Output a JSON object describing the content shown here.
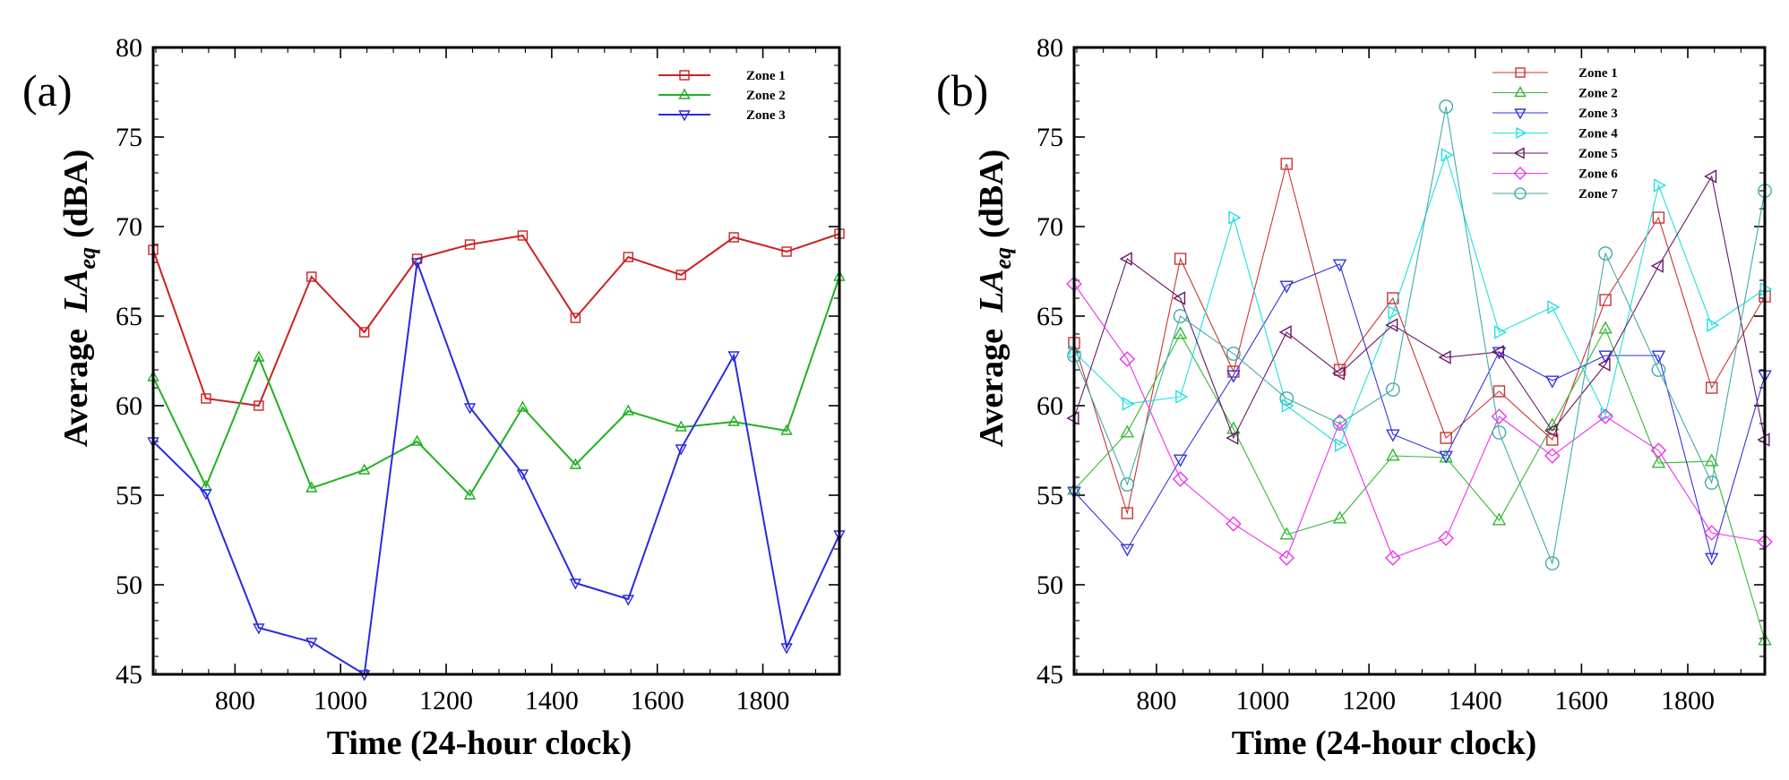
{
  "chart_data": [
    {
      "type": "line",
      "panel_label": "(a)",
      "xlabel": "Time (24-hour clock)",
      "ylabel": {
        "prefix": "Average",
        "main": "LA",
        "sub": "eq",
        "suffix": "(dBA)"
      },
      "xlim": [
        645,
        1945
      ],
      "ylim": [
        45,
        80
      ],
      "xticks": [
        800,
        1000,
        1200,
        1400,
        1600,
        1800
      ],
      "yticks": [
        45,
        50,
        55,
        60,
        65,
        70,
        75,
        80
      ],
      "x": [
        645,
        745,
        845,
        945,
        1045,
        1145,
        1245,
        1345,
        1445,
        1545,
        1645,
        1745,
        1845,
        1945
      ],
      "legend_position": "top-right",
      "series": [
        {
          "name": "Zone 1",
          "color": "#cc2222",
          "marker": "square",
          "values": [
            68.7,
            60.4,
            60.0,
            67.2,
            64.1,
            68.2,
            69.0,
            69.5,
            64.9,
            68.3,
            67.3,
            69.4,
            68.6,
            69.6
          ]
        },
        {
          "name": "Zone 2",
          "color": "#22b022",
          "marker": "triangle-up",
          "values": [
            61.6,
            55.5,
            62.7,
            55.4,
            56.4,
            58.0,
            55.0,
            59.9,
            56.7,
            59.7,
            58.8,
            59.1,
            58.6,
            67.2
          ]
        },
        {
          "name": "Zone 3",
          "color": "#2a2ae0",
          "marker": "triangle-down",
          "values": [
            58.0,
            55.1,
            47.6,
            46.8,
            45.0,
            68.0,
            59.9,
            56.2,
            50.1,
            49.2,
            57.6,
            62.8,
            46.5,
            52.8
          ]
        }
      ]
    },
    {
      "type": "line",
      "panel_label": "(b)",
      "xlabel": "Time (24-hour clock)",
      "ylabel": {
        "prefix": "Average",
        "main": "LA",
        "sub": "eq",
        "suffix": "(dBA)"
      },
      "xlim": [
        645,
        1945
      ],
      "ylim": [
        45,
        80
      ],
      "xticks": [
        800,
        1000,
        1200,
        1400,
        1600,
        1800
      ],
      "yticks": [
        45,
        50,
        55,
        60,
        65,
        70,
        75,
        80
      ],
      "x": [
        645,
        745,
        845,
        945,
        1045,
        1145,
        1245,
        1345,
        1445,
        1545,
        1645,
        1745,
        1845,
        1945
      ],
      "legend_position": "top-right",
      "series": [
        {
          "name": "Zone 1",
          "color": "#cc3333",
          "marker": "square",
          "values": [
            63.5,
            54.0,
            68.2,
            61.9,
            73.5,
            62.0,
            66.0,
            58.2,
            60.8,
            58.1,
            65.9,
            70.5,
            61.0,
            66.1
          ]
        },
        {
          "name": "Zone 2",
          "color": "#33bb33",
          "marker": "triangle-up",
          "values": [
            55.3,
            58.5,
            64.0,
            58.7,
            52.8,
            53.7,
            57.2,
            57.1,
            53.6,
            58.9,
            64.3,
            56.8,
            56.9,
            46.9
          ]
        },
        {
          "name": "Zone 3",
          "color": "#3333dd",
          "marker": "triangle-down",
          "values": [
            55.2,
            52.0,
            57.0,
            61.7,
            66.7,
            67.9,
            58.4,
            57.2,
            63.0,
            61.4,
            62.8,
            62.8,
            51.5,
            61.7
          ]
        },
        {
          "name": "Zone 4",
          "color": "#22e0e0",
          "marker": "triangle-right",
          "values": [
            63.0,
            60.1,
            60.5,
            70.5,
            60.0,
            57.8,
            65.2,
            74.0,
            64.1,
            65.5,
            59.5,
            72.3,
            64.5,
            66.5
          ]
        },
        {
          "name": "Zone 5",
          "color": "#661a66",
          "marker": "triangle-left",
          "values": [
            59.3,
            68.2,
            66.0,
            58.2,
            64.1,
            61.8,
            64.5,
            62.7,
            63.0,
            58.6,
            62.3,
            67.8,
            72.8,
            58.1
          ]
        },
        {
          "name": "Zone 6",
          "color": "#ee33ee",
          "marker": "diamond",
          "values": [
            66.8,
            62.6,
            55.9,
            53.4,
            51.5,
            59.1,
            51.5,
            52.6,
            59.4,
            57.2,
            59.4,
            57.5,
            52.9,
            52.4
          ]
        },
        {
          "name": "Zone 7",
          "color": "#44aaaa",
          "marker": "circle",
          "values": [
            62.8,
            55.6,
            65.0,
            62.9,
            60.4,
            59.0,
            60.9,
            76.7,
            58.5,
            51.2,
            68.5,
            62.0,
            55.7,
            72.0
          ]
        }
      ]
    }
  ]
}
